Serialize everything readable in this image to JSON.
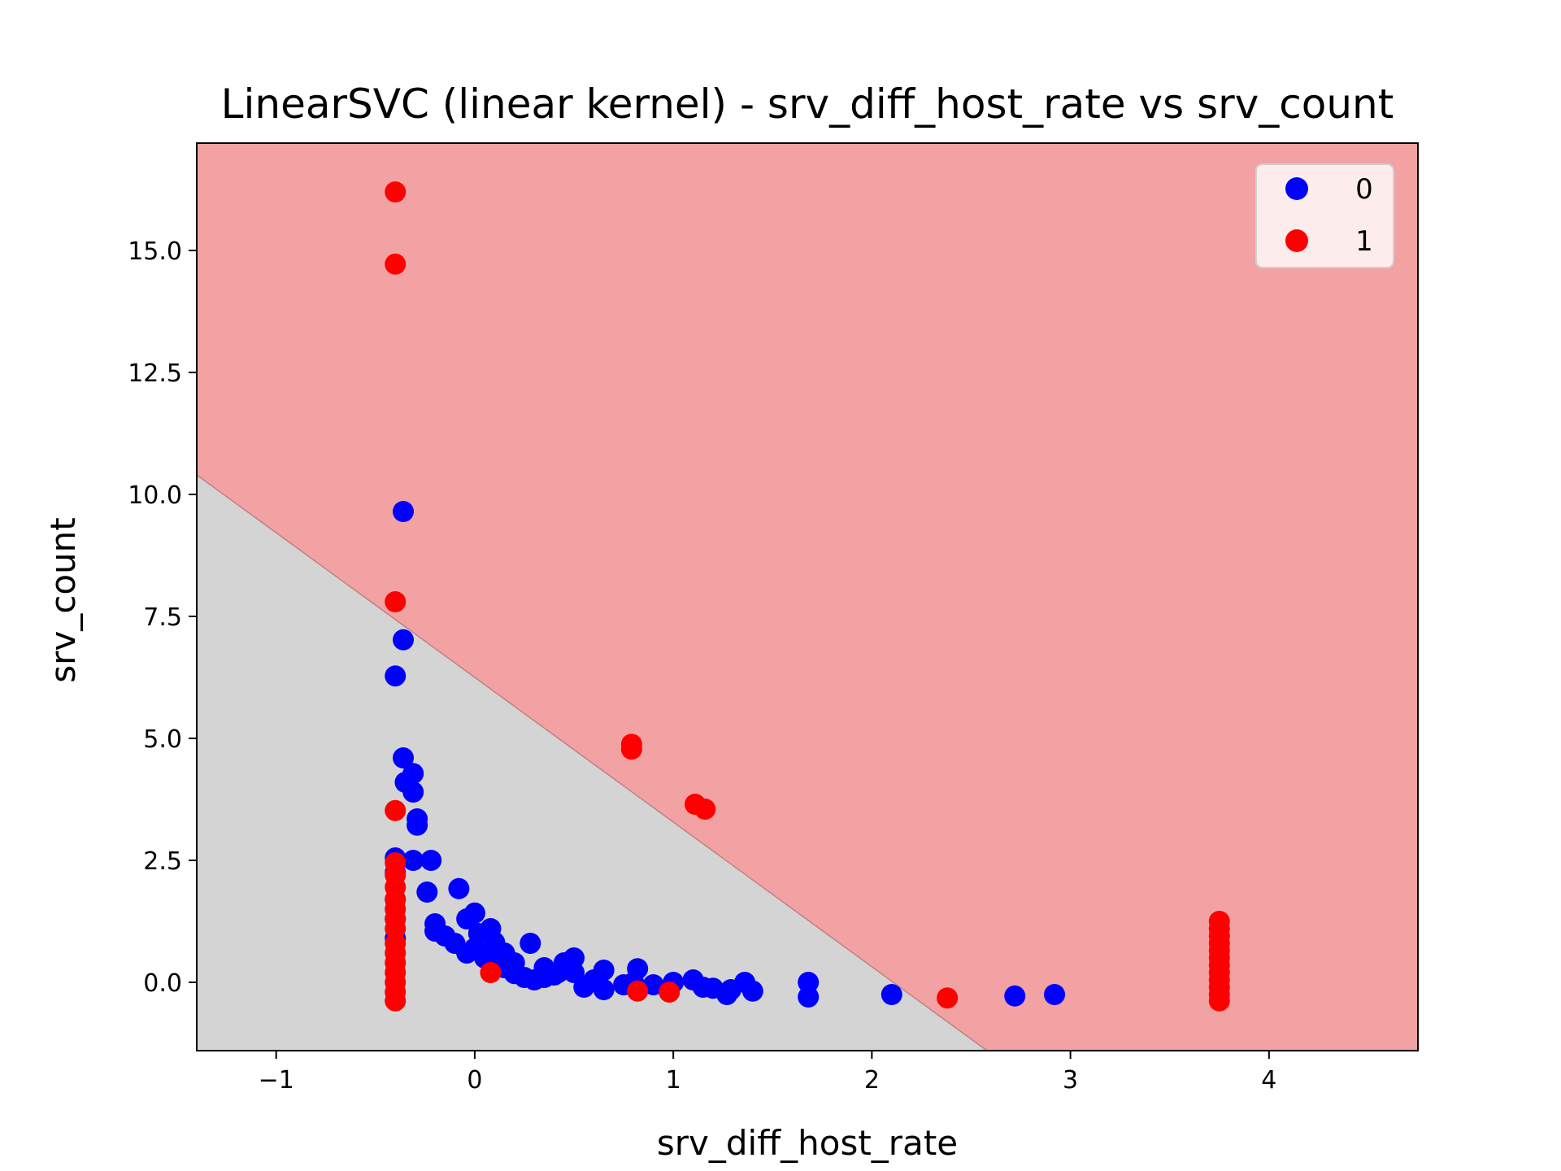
{
  "chart_data": {
    "type": "scatter",
    "title": "LinearSVC (linear kernel) - srv_diff_host_rate vs srv_count",
    "xlabel": "srv_diff_host_rate",
    "ylabel": "srv_count",
    "xlim": [
      -1.4,
      4.75
    ],
    "ylim": [
      -1.4,
      17.2
    ],
    "x_ticks": [
      -1,
      0,
      1,
      2,
      3,
      4
    ],
    "x_tick_labels": [
      "−1",
      "0",
      "1",
      "2",
      "3",
      "4"
    ],
    "y_ticks": [
      0.0,
      2.5,
      5.0,
      7.5,
      10.0,
      12.5,
      15.0
    ],
    "y_tick_labels": [
      "0.0",
      "2.5",
      "5.0",
      "7.5",
      "10.0",
      "12.5",
      "15.0"
    ],
    "grid": false,
    "legend_position": "top-right",
    "decision_boundary": {
      "points": [
        [
          -1.4,
          10.4
        ],
        [
          2.58,
          -1.4
        ]
      ],
      "region_below_color": "#d4d4d4",
      "region_above_color": "#f2a2a2",
      "boundary_color": "#c08080"
    },
    "series": [
      {
        "name": "0",
        "color": "#0000ff",
        "points": [
          [
            -0.36,
            9.65
          ],
          [
            -0.36,
            7.02
          ],
          [
            -0.4,
            6.28
          ],
          [
            -0.36,
            4.6
          ],
          [
            -0.31,
            4.28
          ],
          [
            -0.35,
            4.1
          ],
          [
            -0.31,
            3.9
          ],
          [
            -0.29,
            3.35
          ],
          [
            -0.29,
            3.22
          ],
          [
            -0.4,
            2.55
          ],
          [
            -0.31,
            2.5
          ],
          [
            -0.22,
            2.5
          ],
          [
            -0.4,
            2.25
          ],
          [
            -0.24,
            1.85
          ],
          [
            -0.4,
            1.7
          ],
          [
            -0.08,
            1.92
          ],
          [
            -0.4,
            1.3
          ],
          [
            -0.2,
            1.2
          ],
          [
            -0.2,
            1.05
          ],
          [
            0.0,
            1.42
          ],
          [
            -0.04,
            1.3
          ],
          [
            -0.15,
            0.95
          ],
          [
            -0.4,
            0.9
          ],
          [
            -0.1,
            0.8
          ],
          [
            0.02,
            1.0
          ],
          [
            0.08,
            1.1
          ],
          [
            0.1,
            0.82
          ],
          [
            -0.04,
            0.6
          ],
          [
            0.0,
            0.7
          ],
          [
            0.05,
            0.5
          ],
          [
            0.12,
            0.45
          ],
          [
            0.15,
            0.3
          ],
          [
            0.2,
            0.18
          ],
          [
            0.25,
            0.1
          ],
          [
            0.3,
            0.05
          ],
          [
            0.28,
            0.8
          ],
          [
            0.35,
            0.3
          ],
          [
            0.4,
            0.15
          ],
          [
            0.45,
            0.4
          ],
          [
            0.5,
            0.5
          ],
          [
            0.5,
            0.2
          ],
          [
            0.55,
            -0.1
          ],
          [
            0.6,
            0.05
          ],
          [
            0.65,
            0.25
          ],
          [
            0.65,
            -0.15
          ],
          [
            0.8,
            0.0
          ],
          [
            0.82,
            0.28
          ],
          [
            0.9,
            -0.05
          ],
          [
            1.0,
            0.0
          ],
          [
            1.1,
            0.05
          ],
          [
            1.15,
            -0.1
          ],
          [
            1.2,
            -0.12
          ],
          [
            1.27,
            -0.25
          ],
          [
            1.29,
            -0.15
          ],
          [
            1.36,
            0.0
          ],
          [
            1.4,
            -0.18
          ],
          [
            1.68,
            0.0
          ],
          [
            1.68,
            -0.3
          ],
          [
            2.1,
            -0.25
          ],
          [
            2.72,
            -0.28
          ],
          [
            2.92,
            -0.25
          ],
          [
            0.15,
            0.6
          ],
          [
            0.2,
            0.4
          ],
          [
            0.35,
            0.1
          ],
          [
            0.42,
            0.2
          ],
          [
            0.75,
            -0.05
          ]
        ]
      },
      {
        "name": "1",
        "color": "#ff0000",
        "points": [
          [
            -0.4,
            16.2
          ],
          [
            -0.4,
            14.72
          ],
          [
            -0.4,
            7.8
          ],
          [
            -0.4,
            3.52
          ],
          [
            -0.4,
            2.45
          ],
          [
            -0.4,
            2.2
          ],
          [
            -0.4,
            1.95
          ],
          [
            -0.4,
            1.7
          ],
          [
            -0.4,
            1.5
          ],
          [
            -0.4,
            1.3
          ],
          [
            -0.4,
            1.1
          ],
          [
            -0.4,
            0.8
          ],
          [
            -0.4,
            0.6
          ],
          [
            -0.4,
            0.4
          ],
          [
            -0.4,
            0.2
          ],
          [
            -0.4,
            0.0
          ],
          [
            -0.4,
            -0.2
          ],
          [
            -0.4,
            -0.38
          ],
          [
            0.79,
            4.88
          ],
          [
            0.79,
            4.78
          ],
          [
            1.11,
            3.65
          ],
          [
            1.16,
            3.55
          ],
          [
            0.08,
            0.2
          ],
          [
            0.82,
            -0.18
          ],
          [
            0.98,
            -0.2
          ],
          [
            2.38,
            -0.32
          ],
          [
            3.75,
            1.25
          ],
          [
            3.75,
            1.1
          ],
          [
            3.75,
            0.95
          ],
          [
            3.75,
            0.8
          ],
          [
            3.75,
            0.65
          ],
          [
            3.75,
            0.5
          ],
          [
            3.75,
            0.35
          ],
          [
            3.75,
            0.2
          ],
          [
            3.75,
            0.05
          ],
          [
            3.75,
            -0.1
          ],
          [
            3.75,
            -0.25
          ],
          [
            3.75,
            -0.38
          ]
        ]
      }
    ]
  }
}
